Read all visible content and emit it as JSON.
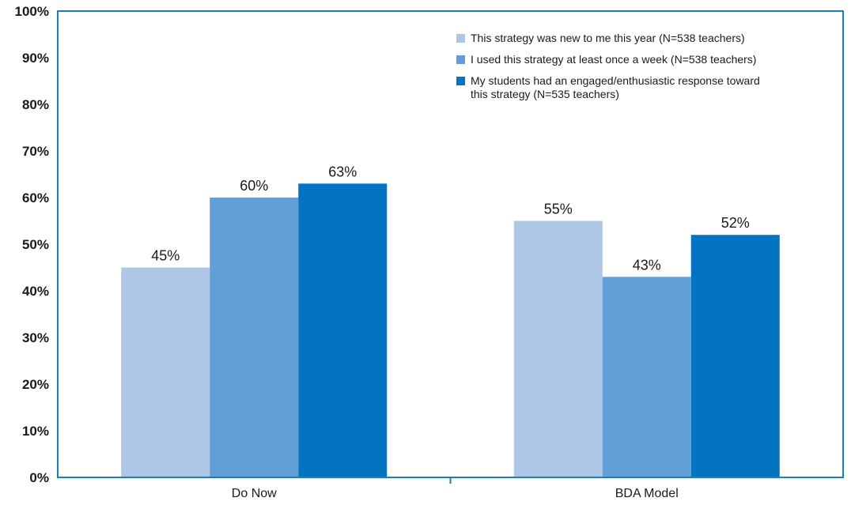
{
  "chart_data": {
    "type": "bar",
    "categories": [
      "Do Now",
      "BDA Model"
    ],
    "series": [
      {
        "name": "This strategy was new to me this year (N=538 teachers)",
        "color": "#adc6e6",
        "values": [
          45,
          55
        ],
        "labels": [
          "45%",
          "55%"
        ]
      },
      {
        "name": "I used this strategy at least once a week (N=538 teachers)",
        "color": "#629fd6",
        "values": [
          60,
          43
        ],
        "labels": [
          "60%",
          "43%"
        ]
      },
      {
        "name": "My students had an engaged/enthusiastic response toward this strategy (N=535 teachers)",
        "legend_lines": [
          "My students had an engaged/enthusiastic response toward",
          "this strategy (N=535 teachers)"
        ],
        "color": "#0274c2",
        "values": [
          63,
          52
        ],
        "labels": [
          "63%",
          "52%"
        ]
      }
    ],
    "ylim": [
      0,
      100
    ],
    "yticks": [
      "0%",
      "10%",
      "20%",
      "30%",
      "40%",
      "50%",
      "60%",
      "70%",
      "80%",
      "90%",
      "100%"
    ],
    "grid": false,
    "legend_position": "top-right",
    "frame_color": "#1a7fc1"
  }
}
